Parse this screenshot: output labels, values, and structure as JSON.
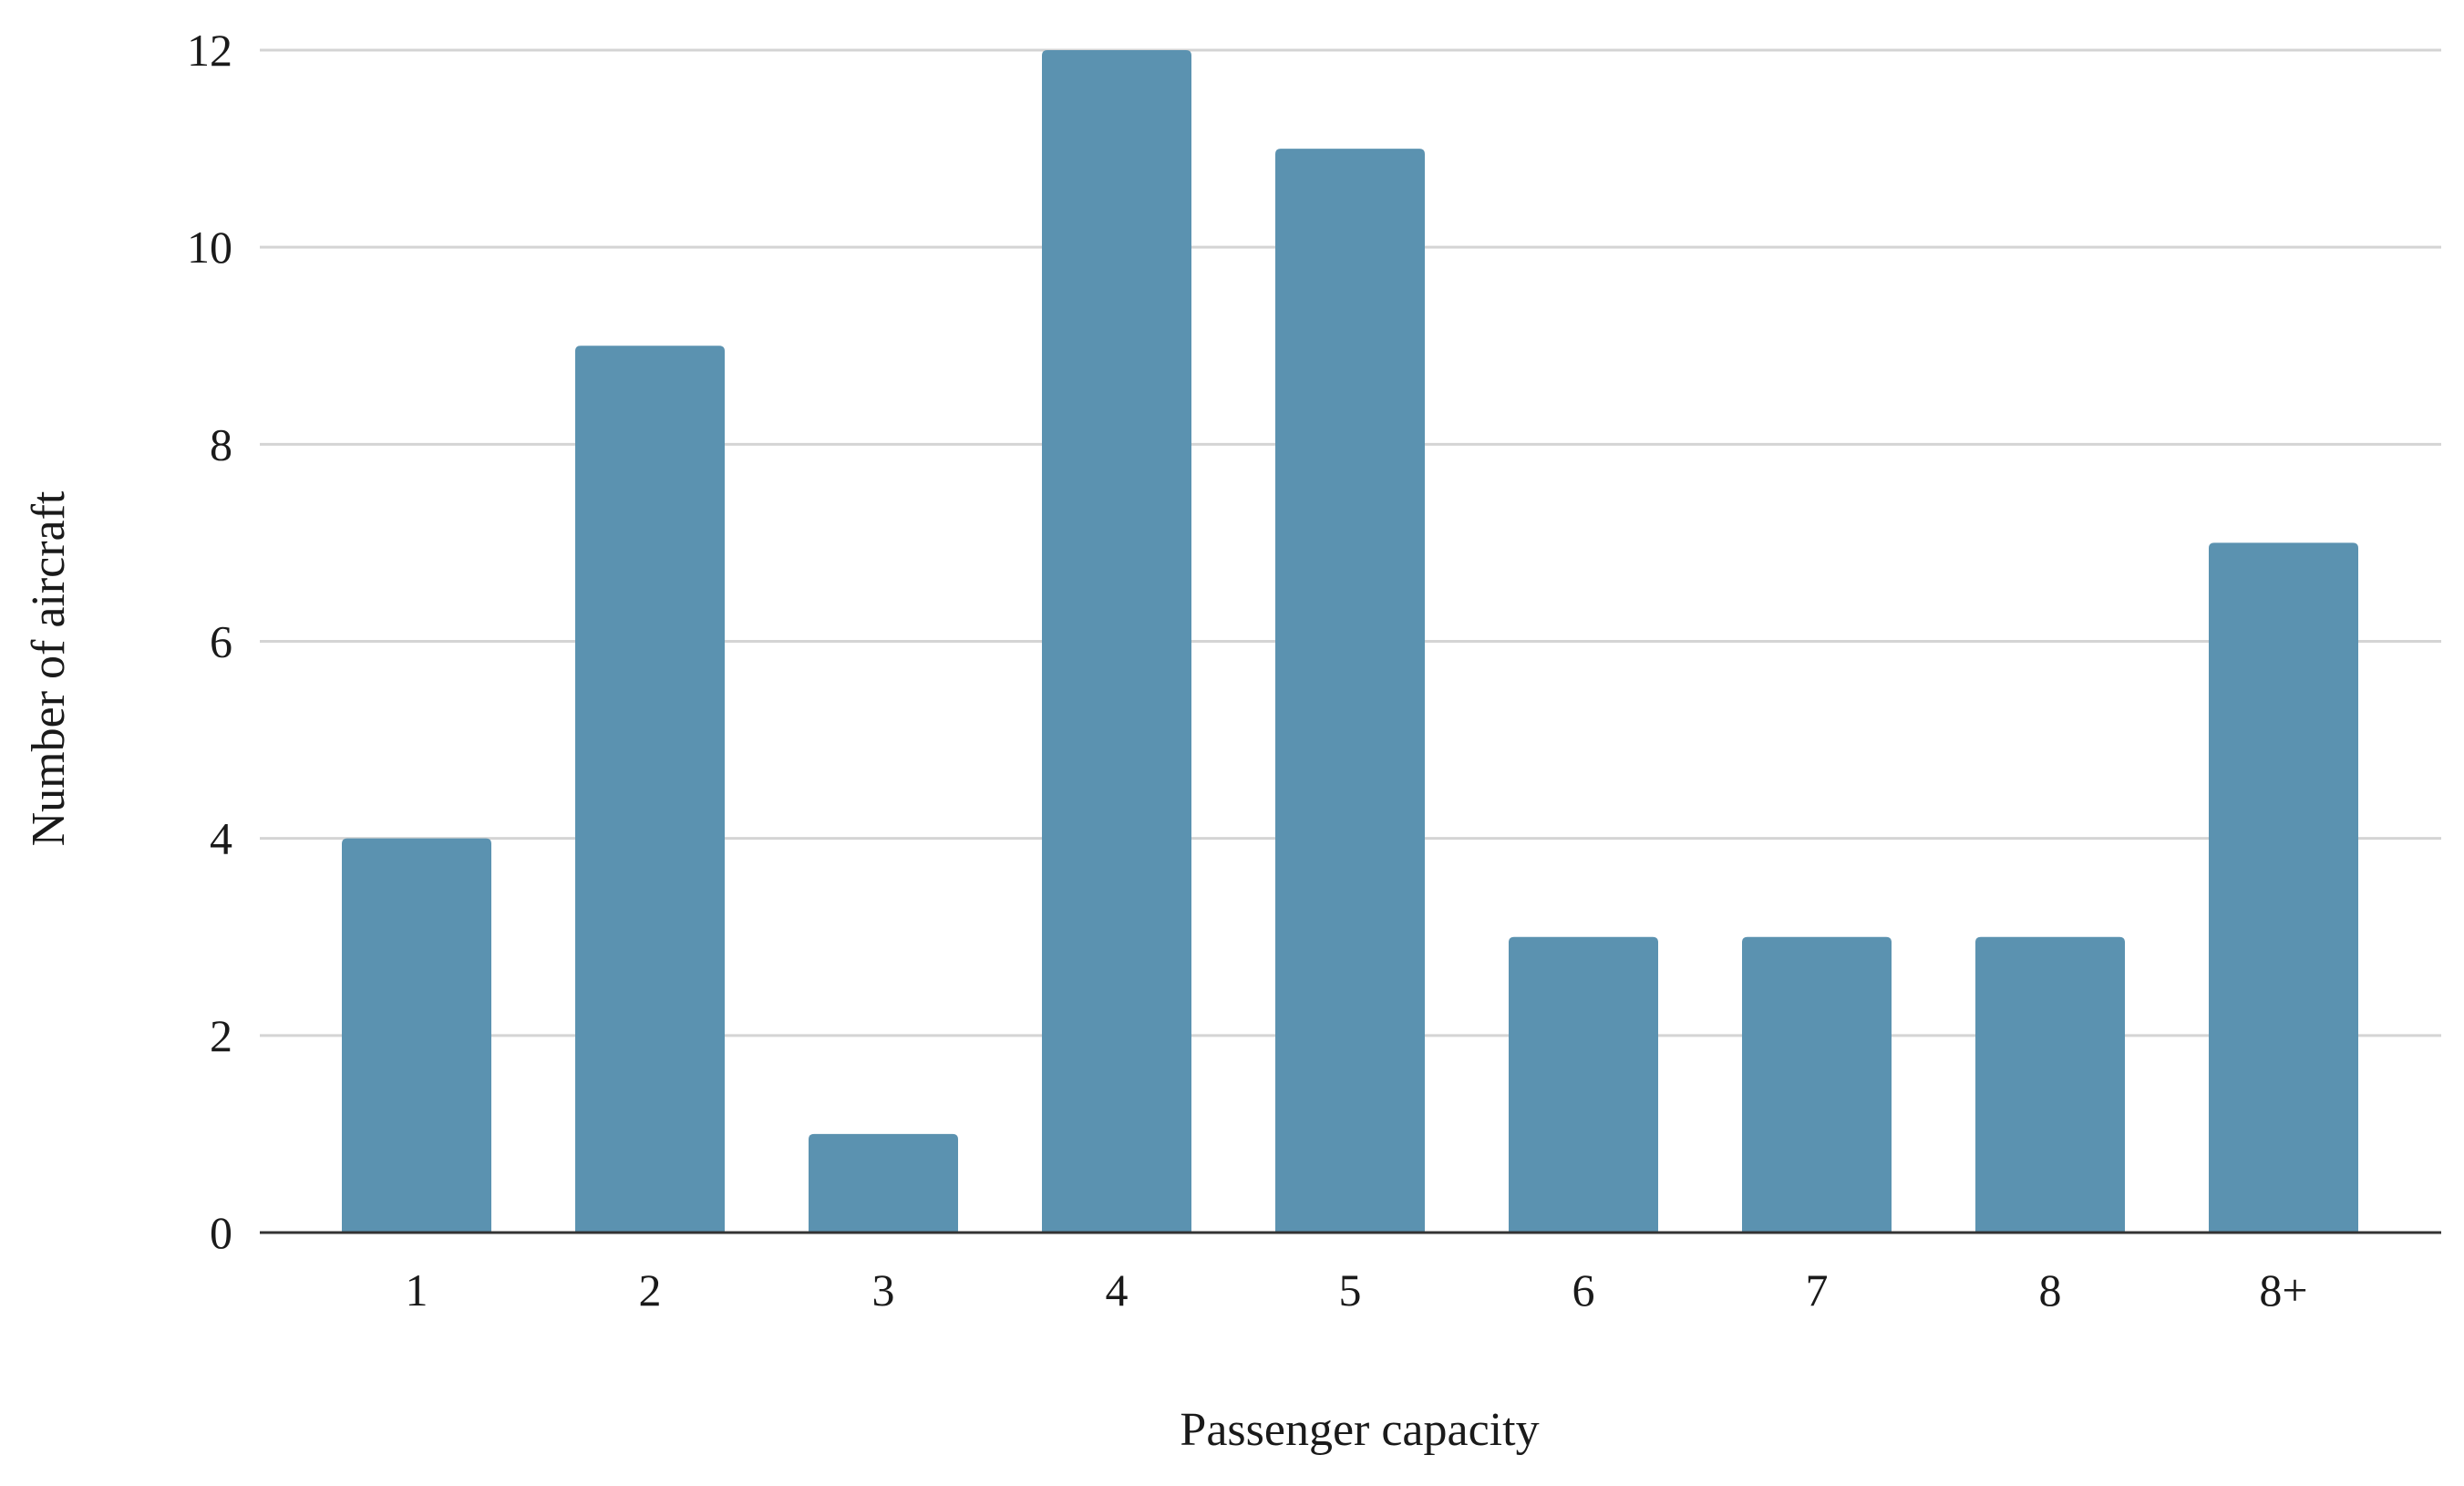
{
  "chart_data": {
    "type": "bar",
    "title": "",
    "xlabel": "Passenger capacity",
    "ylabel": "Number of aircraft",
    "categories": [
      "1",
      "2",
      "3",
      "4",
      "5",
      "6",
      "7",
      "8",
      "8+"
    ],
    "values": [
      4,
      9,
      1,
      12,
      11,
      3,
      3,
      3,
      7
    ],
    "ylim": [
      0,
      12
    ],
    "yticks": [
      "0",
      "2",
      "4",
      "6",
      "8",
      "10",
      "12"
    ],
    "grid": true,
    "legend": "none",
    "bar_color": "#5b92b0",
    "grid_color": "#d4d4d4",
    "axis_color": "#333333"
  }
}
